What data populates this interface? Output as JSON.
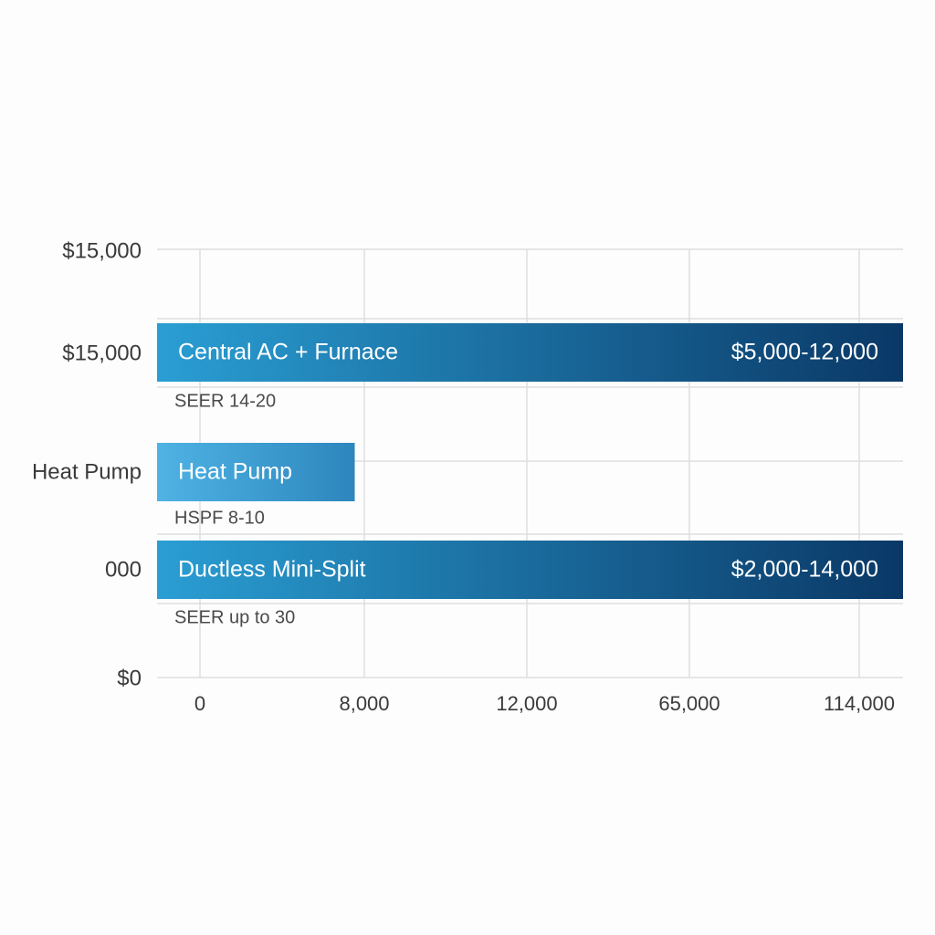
{
  "chart_data": {
    "type": "bar",
    "orientation": "horizontal",
    "grid": true,
    "y_tick_labels": [
      "$15,000",
      "$15,000",
      "Heat Pump",
      "000",
      "$0"
    ],
    "x_tick_labels": [
      "0",
      "8,000",
      "12,000",
      "65,000",
      "114,000"
    ],
    "bars": [
      {
        "label": "Central AC + Furnace",
        "range_label": "$5,000-12,000",
        "sub_label": "SEER 14-20",
        "value_fraction": 1.0
      },
      {
        "label": "Heat Pump",
        "range_label": "",
        "sub_label": "HSPF 8-10",
        "value_fraction": 0.265
      },
      {
        "label": "Ductless Mini-Split",
        "range_label": "$2,000-14,000",
        "sub_label": "SEER up to 30",
        "value_fraction": 1.0
      }
    ],
    "colors": {
      "bar_light": "#2a9ed3",
      "bar_dark": "#0a3866",
      "heat_pump_light": "#4fb3e4",
      "heat_pump_dark": "#2d86bd",
      "grid": "#dedede"
    }
  }
}
